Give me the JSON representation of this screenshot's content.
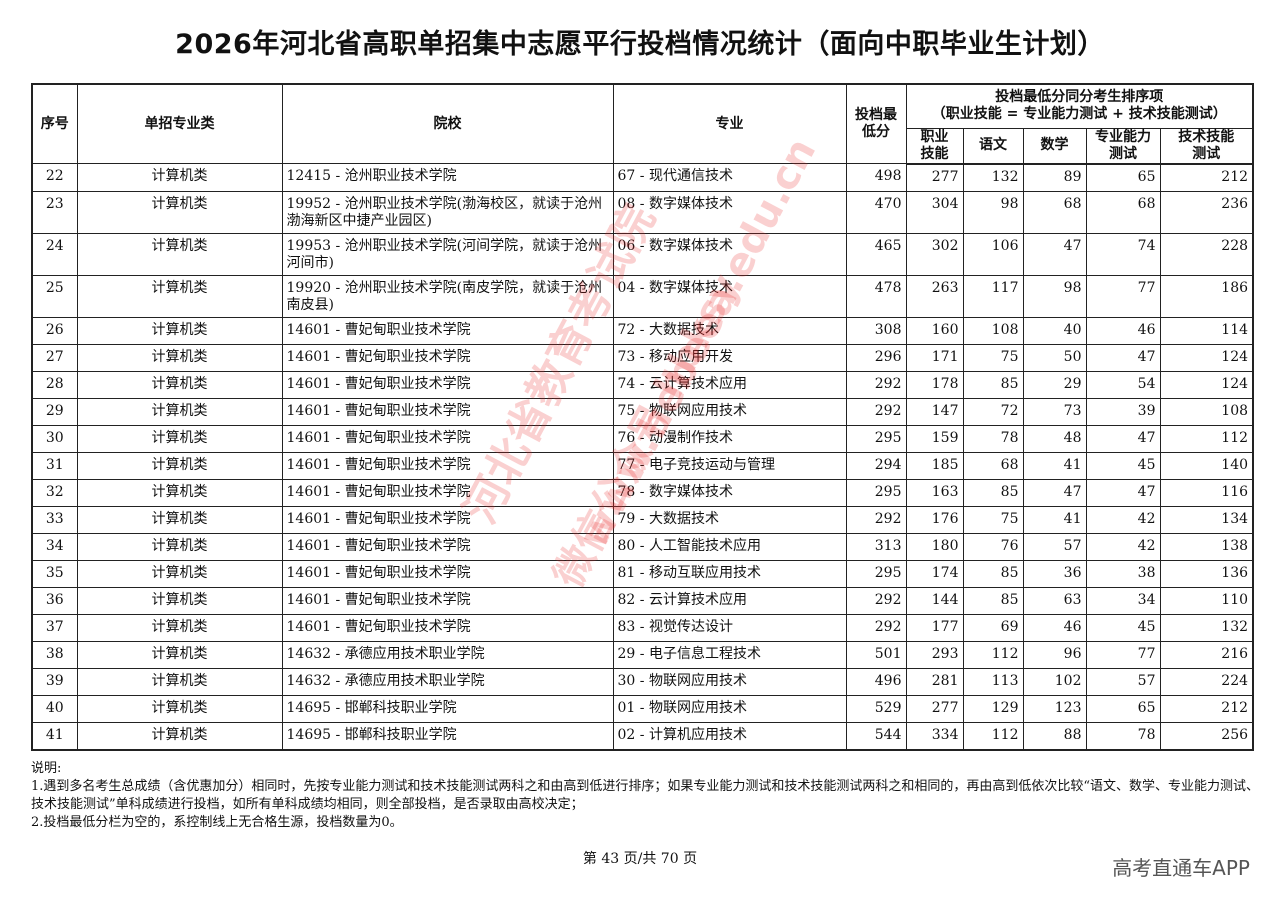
{
  "title": "2026年河北省高职单招集中志愿平行投档情况统计（面向中职毕业生计划）",
  "table": {
    "headers": {
      "seq": "序号",
      "category": "单招专业类",
      "school": "院校",
      "major": "专业",
      "min_score": "投档最低分",
      "tiebreak_group": "投档最低分同分考生排序项",
      "tiebreak_formula": "（职业技能 = 专业能力测试 + 技术技能测试）",
      "vocational": "职业技能",
      "chinese": "语文",
      "math": "数学",
      "professional": "专业能力测试",
      "technical": "技术技能测试"
    },
    "rows": [
      [
        "22",
        "计算机类",
        "12415 - 沧州职业技术学院",
        "67 - 现代通信技术",
        "498",
        "277",
        "132",
        "89",
        "65",
        "212"
      ],
      [
        "23",
        "计算机类",
        "19952 - 沧州职业技术学院(渤海校区，就读于沧州渤海新区中捷产业园区)",
        "08 - 数字媒体技术",
        "470",
        "304",
        "98",
        "68",
        "68",
        "236"
      ],
      [
        "24",
        "计算机类",
        "19953 - 沧州职业技术学院(河间学院，就读于沧州河间市)",
        "06 - 数字媒体技术",
        "465",
        "302",
        "106",
        "47",
        "74",
        "228"
      ],
      [
        "25",
        "计算机类",
        "19920 - 沧州职业技术学院(南皮学院，就读于沧州南皮县)",
        "04 - 数字媒体技术",
        "478",
        "263",
        "117",
        "98",
        "77",
        "186"
      ],
      [
        "26",
        "计算机类",
        "14601 - 曹妃甸职业技术学院",
        "72 - 大数据技术",
        "308",
        "160",
        "108",
        "40",
        "46",
        "114"
      ],
      [
        "27",
        "计算机类",
        "14601 - 曹妃甸职业技术学院",
        "73 - 移动应用开发",
        "296",
        "171",
        "75",
        "50",
        "47",
        "124"
      ],
      [
        "28",
        "计算机类",
        "14601 - 曹妃甸职业技术学院",
        "74 - 云计算技术应用",
        "292",
        "178",
        "85",
        "29",
        "54",
        "124"
      ],
      [
        "29",
        "计算机类",
        "14601 - 曹妃甸职业技术学院",
        "75 - 物联网应用技术",
        "292",
        "147",
        "72",
        "73",
        "39",
        "108"
      ],
      [
        "30",
        "计算机类",
        "14601 - 曹妃甸职业技术学院",
        "76 - 动漫制作技术",
        "295",
        "159",
        "78",
        "48",
        "47",
        "112"
      ],
      [
        "31",
        "计算机类",
        "14601 - 曹妃甸职业技术学院",
        "77 - 电子竞技运动与管理",
        "294",
        "185",
        "68",
        "41",
        "45",
        "140"
      ],
      [
        "32",
        "计算机类",
        "14601 - 曹妃甸职业技术学院",
        "78 - 数字媒体技术",
        "295",
        "163",
        "85",
        "47",
        "47",
        "116"
      ],
      [
        "33",
        "计算机类",
        "14601 - 曹妃甸职业技术学院",
        "79 - 大数据技术",
        "292",
        "176",
        "75",
        "41",
        "42",
        "134"
      ],
      [
        "34",
        "计算机类",
        "14601 - 曹妃甸职业技术学院",
        "80 - 人工智能技术应用",
        "313",
        "180",
        "76",
        "57",
        "42",
        "138"
      ],
      [
        "35",
        "计算机类",
        "14601 - 曹妃甸职业技术学院",
        "81 - 移动互联应用技术",
        "295",
        "174",
        "85",
        "36",
        "38",
        "136"
      ],
      [
        "36",
        "计算机类",
        "14601 - 曹妃甸职业技术学院",
        "82 - 云计算技术应用",
        "292",
        "144",
        "85",
        "63",
        "34",
        "110"
      ],
      [
        "37",
        "计算机类",
        "14601 - 曹妃甸职业技术学院",
        "83 - 视觉传达设计",
        "292",
        "177",
        "69",
        "46",
        "45",
        "132"
      ],
      [
        "38",
        "计算机类",
        "14632 - 承德应用技术职业学院",
        "29 - 电子信息工程技术",
        "501",
        "293",
        "112",
        "96",
        "77",
        "216"
      ],
      [
        "39",
        "计算机类",
        "14632 - 承德应用技术职业学院",
        "30 - 物联网应用技术",
        "496",
        "281",
        "113",
        "102",
        "57",
        "224"
      ],
      [
        "40",
        "计算机类",
        "14695 - 邯郸科技职业学院",
        "01 - 物联网应用技术",
        "529",
        "277",
        "129",
        "123",
        "65",
        "212"
      ],
      [
        "41",
        "计算机类",
        "14695 - 邯郸科技职业学院",
        "02 - 计算机应用技术",
        "544",
        "334",
        "112",
        "88",
        "78",
        "256"
      ]
    ]
  },
  "notes": {
    "heading": "说明:",
    "items": [
      "1.遇到多名考生总成绩（含优惠加分）相同时，先按专业能力测试和技术技能测试两科之和由高到低进行排序；如果专业能力测试和技术技能测试两科之和相同的，再由高到低依次比较“语文、数学、专业能力测试、技术技能测试”单科成绩进行投档，如所有单科成绩均相同，则全部投档，是否录取由高校决定；",
      "2.投档最低分栏为空的，系控制线上无合格生源，投档数量为0。"
    ]
  },
  "footer": {
    "page": "第 43 页/共 70 页",
    "brand": "高考直通车APP"
  },
  "watermark": {
    "line1": "河北省教育考试院",
    "line2": "www.hebeea.edu.cn",
    "line3": "微信公众号 hbksy",
    "color": "#e62828"
  }
}
